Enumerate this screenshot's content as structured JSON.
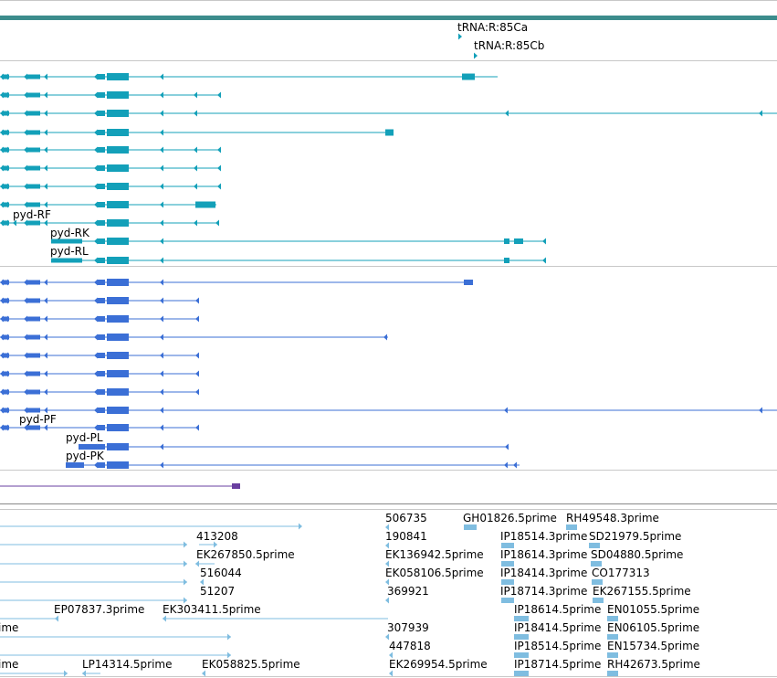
{
  "tracks": {
    "trna": {
      "labels": [
        "tRNA:R:85Ca",
        "tRNA:R:85Cb"
      ]
    },
    "transcripts_teal": {
      "color": "#13a0b9",
      "labels": [
        "pyd-RF",
        "pyd-RK",
        "pyd-RL"
      ]
    },
    "transcripts_blue": {
      "color": "#3b6fd6",
      "labels": [
        "pyd-PF",
        "pyd-PL",
        "pyd-PK"
      ]
    },
    "purple_feature": {
      "color": "#6a3fa0"
    },
    "ests": {
      "color": "#7fbde0",
      "labels": [
        "413208",
        "EK267850.5prime",
        "516044",
        "51207",
        "EP07837.3prime",
        "EK303411.5prime",
        "ime",
        "ime",
        "LP14314.5prime",
        "EK058825.5prime",
        "506735",
        "190841",
        "EK136942.5prime",
        "EK058106.5prime",
        "369921",
        "307939",
        "447818",
        "EK269954.5prime",
        "GH01826.5prime",
        "IP18514.3prime",
        "IP18614.3prime",
        "IP18414.3prime",
        "IP18714.3prime",
        "IP18614.5prime",
        "IP18414.5prime",
        "IP18514.5prime",
        "IP18714.5prime",
        "RH49548.3prime",
        "SD21979.5prime",
        "SD04880.5prime",
        "CO177313",
        "EK267155.5prime",
        "EN01055.5prime",
        "EN06105.5prime",
        "EN15734.5prime",
        "RH42673.5prime"
      ]
    }
  },
  "colors": {
    "top_bar": "#3c8c8c",
    "divider": "#c8c8c8"
  }
}
